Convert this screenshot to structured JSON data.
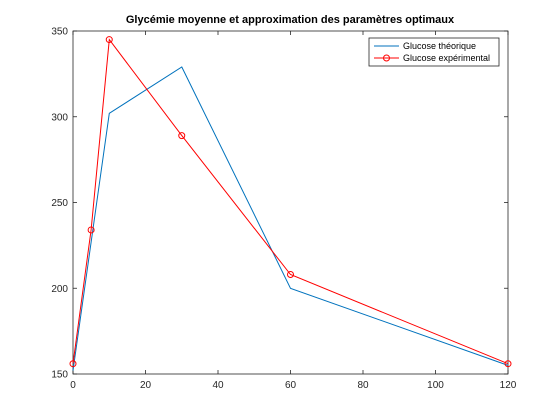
{
  "chart_data": {
    "type": "line",
    "title": "Glycémie moyenne et approximation des paramètres optimaux",
    "xlabel": "",
    "ylabel": "",
    "xlim": [
      0,
      120
    ],
    "ylim": [
      150,
      350
    ],
    "x_ticks": [
      0,
      20,
      40,
      60,
      80,
      100,
      120
    ],
    "y_ticks": [
      150,
      200,
      250,
      300,
      350
    ],
    "grid": false,
    "legend_position": "top-right",
    "series": [
      {
        "name": "Glucose théorique",
        "color": "#0072BD",
        "marker": "none",
        "x": [
          0,
          10,
          30,
          60,
          120
        ],
        "y": [
          152,
          302,
          329,
          200,
          155
        ]
      },
      {
        "name": "Glucose expérimental",
        "color": "#FF0000",
        "marker": "circle",
        "x": [
          0,
          5,
          10,
          30,
          60,
          120
        ],
        "y": [
          156,
          234,
          345,
          289,
          208,
          156
        ]
      }
    ]
  }
}
